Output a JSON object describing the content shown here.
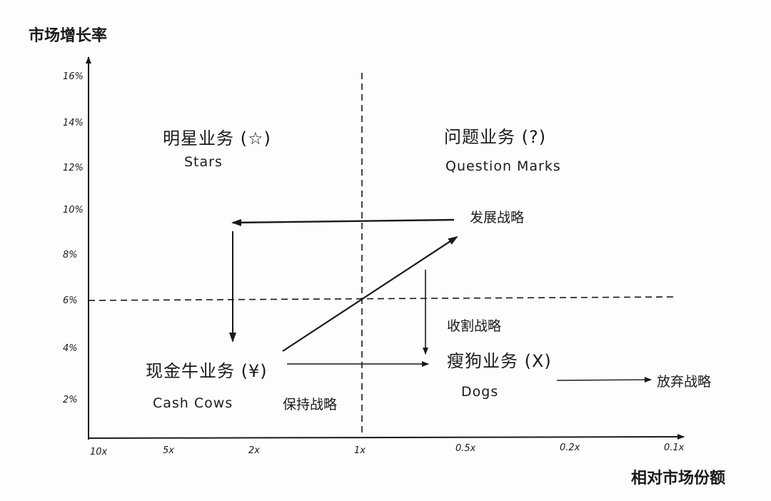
{
  "axes": {
    "y_title": "市场增长率",
    "x_title": "相对市场份额",
    "y_ticks": [
      "16%",
      "14%",
      "12%",
      "10%",
      "8%",
      "6%",
      "4%",
      "2%"
    ],
    "x_ticks": [
      "10x",
      "5x",
      "2x",
      "1x",
      "0.5x",
      "0.2x",
      "0.1x"
    ]
  },
  "quadrants": {
    "stars": {
      "cn": "明星业务 (☆)",
      "en": "Stars"
    },
    "question_marks": {
      "cn": "问题业务 (?)",
      "en": "Question Marks"
    },
    "cash_cows": {
      "cn": "现金牛业务 (¥)",
      "en": "Cash Cows"
    },
    "dogs": {
      "cn": "瘦狗业务 (X)",
      "en": "Dogs"
    }
  },
  "strategies": {
    "develop": "发展战略",
    "harvest": "收割战略",
    "hold": "保持战略",
    "divest": "放弃战略"
  }
}
